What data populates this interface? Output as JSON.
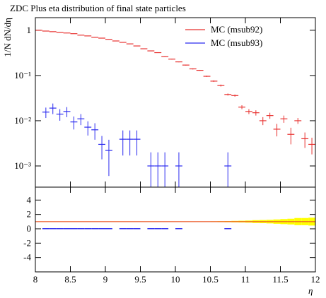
{
  "chart_data": [
    {
      "type": "histogram",
      "title": "ZDC Plus eta distribution of final state particles",
      "ylabel": "1/N dN/dη",
      "log_y": true,
      "bins": [
        8,
        8.1,
        8.2,
        8.3,
        8.4,
        8.5,
        8.6,
        8.7,
        8.8,
        8.9,
        9,
        9.1,
        9.2,
        9.3,
        9.4,
        9.5,
        9.6,
        9.7,
        9.8,
        9.9,
        10,
        10.1,
        10.2,
        10.3,
        10.4,
        10.5,
        10.6,
        10.7,
        10.8,
        10.9,
        11,
        11.1,
        11.2,
        11.3,
        11.4,
        11.5,
        11.6,
        11.7,
        11.8,
        11.9,
        12
      ],
      "xlim": [
        8,
        12
      ],
      "ylim": [
        0.00034,
        1.9
      ],
      "yticks": [
        {
          "value": 1,
          "label": "1"
        },
        {
          "value": 0.1,
          "label": "10⁻¹"
        },
        {
          "value": 0.01,
          "label": "10⁻²"
        },
        {
          "value": 0.001,
          "label": "10⁻³"
        }
      ],
      "legend": "top-right",
      "series": [
        {
          "name": "MC (msub92)",
          "color": "#e8312f",
          "values": [
            1.0,
            0.96,
            0.93,
            0.9,
            0.87,
            0.84,
            0.78,
            0.75,
            0.7,
            0.67,
            0.63,
            0.58,
            0.54,
            0.5,
            0.45,
            0.39,
            0.35,
            0.32,
            0.26,
            0.23,
            0.2,
            0.17,
            0.14,
            0.13,
            0.096,
            0.075,
            0.06,
            0.038,
            0.036,
            0.02,
            0.016,
            0.015,
            0.01,
            0.013,
            0.0065,
            0.011,
            0.005,
            0.01,
            0.004,
            0.003
          ],
          "errors": [
            0.01,
            0.01,
            0.01,
            0.01,
            0.01,
            0.01,
            0.01,
            0.01,
            0.01,
            0.01,
            0.008,
            0.008,
            0.008,
            0.007,
            0.007,
            0.006,
            0.006,
            0.005,
            0.005,
            0.005,
            0.004,
            0.004,
            0.004,
            0.003,
            0.003,
            0.003,
            0.003,
            0.002,
            0.002,
            0.002,
            0.002,
            0.002,
            0.002,
            0.002,
            0.002,
            0.002,
            0.002,
            0.0015,
            0.0015,
            0.0012
          ]
        },
        {
          "name": "MC (msub93)",
          "color": "#2b2bef",
          "values": [
            null,
            0.0155,
            0.019,
            0.014,
            0.016,
            0.0094,
            0.011,
            0.0072,
            0.0063,
            0.003,
            0.0022,
            null,
            0.0039,
            0.0039,
            0.0039,
            null,
            0.001,
            0.001,
            0.001,
            null,
            0.001,
            null,
            null,
            null,
            null,
            null,
            null,
            0.001,
            null,
            null,
            null,
            null,
            null,
            null,
            null,
            null,
            null,
            null,
            null,
            null
          ],
          "errors": [
            null,
            0.004,
            0.005,
            0.004,
            0.004,
            0.003,
            0.003,
            0.0025,
            0.0025,
            0.0016,
            0.0016,
            null,
            0.0022,
            0.0022,
            0.0022,
            null,
            0.001,
            0.001,
            0.001,
            null,
            0.001,
            null,
            null,
            null,
            null,
            null,
            null,
            0.001,
            null,
            null,
            null,
            null,
            null,
            null,
            null,
            null,
            null,
            null,
            null,
            null
          ]
        }
      ]
    },
    {
      "type": "ratio",
      "xlabel": "η",
      "xlim": [
        8,
        12
      ],
      "xticks": [
        8,
        8.5,
        9,
        9.5,
        10,
        10.5,
        11,
        11.5,
        12
      ],
      "ylim": [
        -6,
        5.8
      ],
      "yticks": [
        -4,
        -2,
        0,
        2,
        4
      ],
      "reference": 1,
      "reference_color": "#e8312f",
      "band_color": "#ffff00",
      "band": [
        0.05,
        0.05,
        0.05,
        0.05,
        0.05,
        0.05,
        0.05,
        0.05,
        0.05,
        0.05,
        0.05,
        0.05,
        0.05,
        0.05,
        0.05,
        0.05,
        0.05,
        0.05,
        0.05,
        0.05,
        0.05,
        0.05,
        0.05,
        0.05,
        0.05,
        0.06,
        0.07,
        0.08,
        0.1,
        0.12,
        0.15,
        0.2,
        0.22,
        0.25,
        0.3,
        0.35,
        0.4,
        0.5,
        0.5,
        0.55
      ],
      "series": [
        {
          "color": "#2b2bef",
          "values": [
            null,
            0.02,
            0.02,
            0.02,
            0.02,
            0.02,
            0.02,
            0.02,
            0.02,
            0.02,
            0.02,
            null,
            0.02,
            0.02,
            0.02,
            null,
            0.02,
            0.02,
            0.02,
            null,
            0.02,
            null,
            null,
            null,
            null,
            null,
            null,
            0.02,
            null,
            null,
            null,
            null,
            null,
            null,
            null,
            null,
            null,
            null,
            null,
            null
          ]
        }
      ]
    }
  ]
}
